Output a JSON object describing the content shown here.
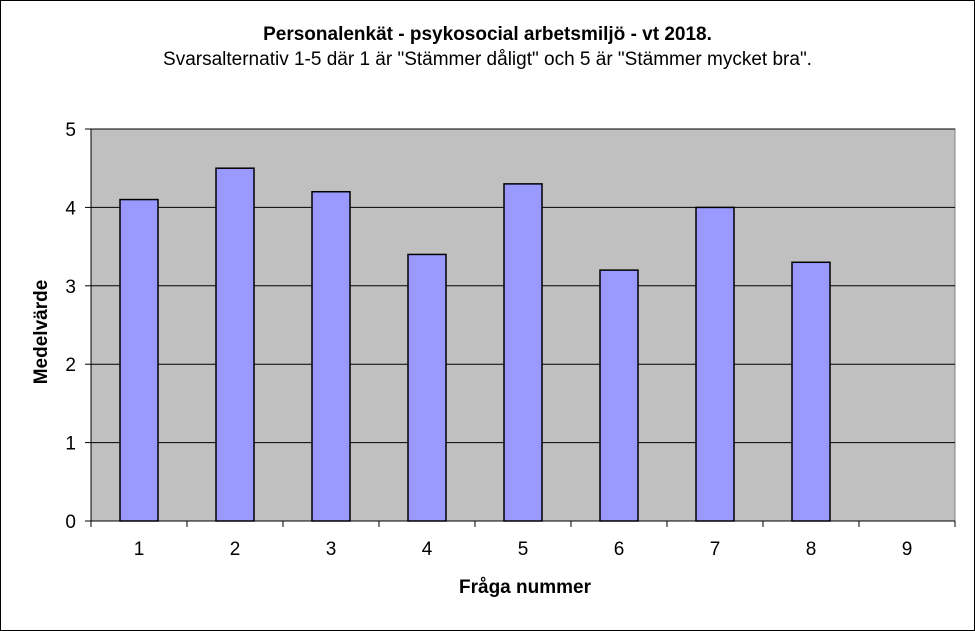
{
  "chart_data": {
    "type": "bar",
    "title": "Personalenkät - psykosocial arbetsmiljö - vt 2018.",
    "subtitle": "Svarsalternativ 1-5 där 1 är \"Stämmer dåligt\" och 5 är \"Stämmer mycket bra\".",
    "xlabel": "Fråga nummer",
    "ylabel": "Medelvärde",
    "categories": [
      "1",
      "2",
      "3",
      "4",
      "5",
      "6",
      "7",
      "8",
      "9"
    ],
    "values": [
      4.1,
      4.5,
      4.2,
      3.4,
      4.3,
      3.2,
      4.0,
      3.3,
      null
    ],
    "ylim": [
      0,
      5
    ],
    "yticks": [
      0,
      1,
      2,
      3,
      4,
      5
    ],
    "grid": true,
    "legend": "none",
    "colors": {
      "bar_fill": "#9999ff",
      "plot_background": "#c0c0c0",
      "gridline": "#000000"
    }
  }
}
